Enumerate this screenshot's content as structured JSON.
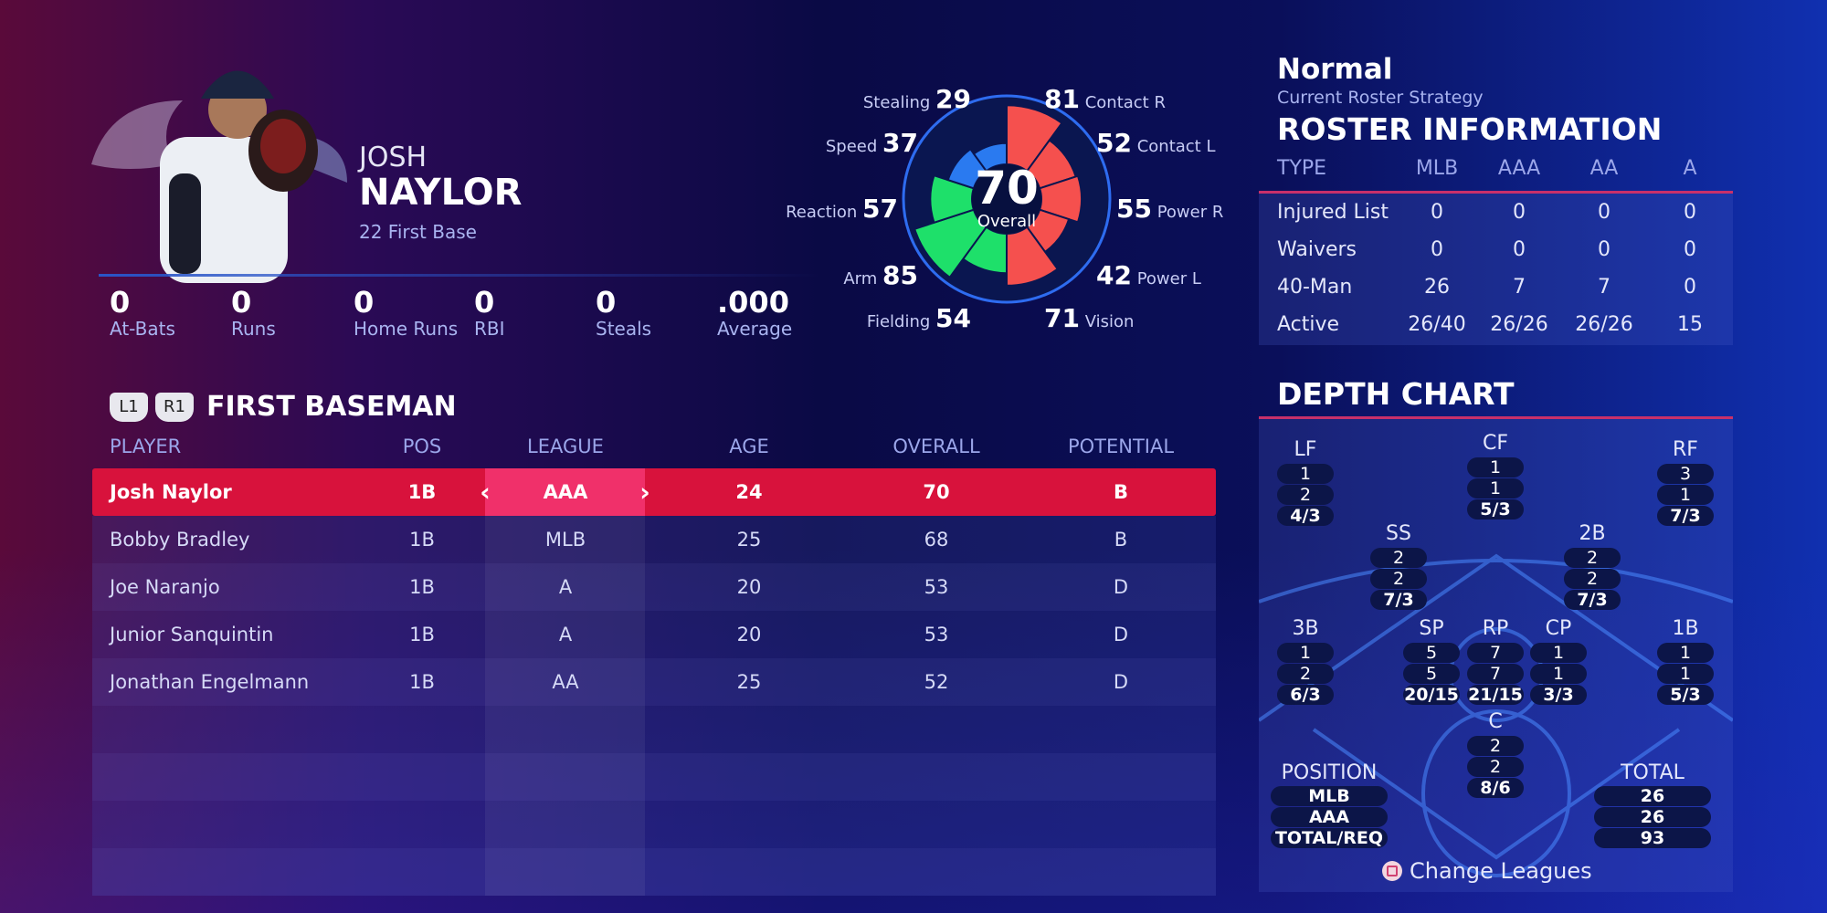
{
  "player": {
    "first_name": "JOSH",
    "last_name": "NAYLOR",
    "number_position": "22  First Base"
  },
  "stats": [
    {
      "value": "0",
      "label": "At-Bats"
    },
    {
      "value": "0",
      "label": "Runs"
    },
    {
      "value": "0",
      "label": "Home Runs"
    },
    {
      "value": "0",
      "label": "RBI"
    },
    {
      "value": "0",
      "label": "Steals"
    },
    {
      "value": ".000",
      "label": "Average"
    }
  ],
  "ratings": {
    "overall": "70",
    "overall_label": "Overall",
    "items": [
      {
        "label": "Contact R",
        "value": 81,
        "color": "#f5504e"
      },
      {
        "label": "Contact L",
        "value": 52,
        "color": "#f5504e"
      },
      {
        "label": "Power R",
        "value": 55,
        "color": "#f5504e"
      },
      {
        "label": "Power L",
        "value": 42,
        "color": "#f5504e"
      },
      {
        "label": "Vision",
        "value": 71,
        "color": "#f5504e"
      },
      {
        "label": "Fielding",
        "value": 54,
        "color": "#1ee06a"
      },
      {
        "label": "Arm",
        "value": 85,
        "color": "#1ee06a"
      },
      {
        "label": "Reaction",
        "value": 57,
        "color": "#1ee06a"
      },
      {
        "label": "Speed",
        "value": 37,
        "color": "#2a7af0"
      },
      {
        "label": "Stealing",
        "value": 29,
        "color": "#2a7af0"
      }
    ]
  },
  "section": {
    "l_button": "L1",
    "r_button": "R1",
    "title": "FIRST BASEMAN"
  },
  "table": {
    "headers": [
      "PLAYER",
      "POS",
      "LEAGUE",
      "AGE",
      "OVERALL",
      "POTENTIAL"
    ],
    "rows": [
      [
        "Josh Naylor",
        "1B",
        "AAA",
        "24",
        "70",
        "B"
      ],
      [
        "Bobby Bradley",
        "1B",
        "MLB",
        "25",
        "68",
        "B"
      ],
      [
        "Joe Naranjo",
        "1B",
        "A",
        "20",
        "53",
        "D"
      ],
      [
        "Junior Sanquintin",
        "1B",
        "A",
        "20",
        "53",
        "D"
      ],
      [
        "Jonathan Engelmann",
        "1B",
        "AA",
        "25",
        "52",
        "D"
      ]
    ],
    "selected_row": 0,
    "prev_arrow": "‹",
    "next_arrow": "›"
  },
  "roster": {
    "strategy": "Normal",
    "strategy_label": "Current Roster Strategy",
    "title": "ROSTER INFORMATION",
    "headers": [
      "TYPE",
      "MLB",
      "AAA",
      "AA",
      "A"
    ],
    "rows": [
      [
        "Injured List",
        "0",
        "0",
        "0",
        "0"
      ],
      [
        "Waivers",
        "0",
        "0",
        "0",
        "0"
      ],
      [
        "40-Man",
        "26",
        "7",
        "7",
        "0"
      ],
      [
        "Active",
        "26/40",
        "26/26",
        "26/26",
        "15"
      ]
    ]
  },
  "depth": {
    "title": "DEPTH CHART",
    "positions": [
      {
        "pos": "LF",
        "vals": [
          "1",
          "2",
          "4/3"
        ]
      },
      {
        "pos": "CF",
        "vals": [
          "1",
          "1",
          "5/3"
        ]
      },
      {
        "pos": "RF",
        "vals": [
          "3",
          "1",
          "7/3"
        ]
      },
      {
        "pos": "SS",
        "vals": [
          "2",
          "2",
          "7/3"
        ]
      },
      {
        "pos": "2B",
        "vals": [
          "2",
          "2",
          "7/3"
        ]
      },
      {
        "pos": "3B",
        "vals": [
          "1",
          "2",
          "6/3"
        ]
      },
      {
        "pos": "SP",
        "vals": [
          "5",
          "5",
          "20/15"
        ]
      },
      {
        "pos": "RP",
        "vals": [
          "7",
          "7",
          "21/15"
        ]
      },
      {
        "pos": "CP",
        "vals": [
          "1",
          "1",
          "3/3"
        ]
      },
      {
        "pos": "1B",
        "vals": [
          "1",
          "1",
          "5/3"
        ]
      },
      {
        "pos": "C",
        "vals": [
          "2",
          "2",
          "8/6"
        ]
      }
    ],
    "legend_title": "POSITION",
    "legend": [
      "MLB",
      "AAA",
      "TOTAL/REQ"
    ],
    "total_title": "TOTAL",
    "totals": [
      "26",
      "26",
      "93"
    ],
    "change_leagues": "Change Leagues",
    "change_icon": "square-button-icon"
  }
}
